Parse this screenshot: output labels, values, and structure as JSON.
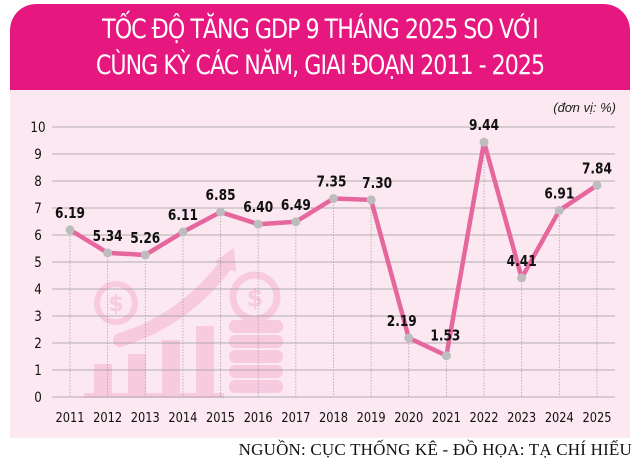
{
  "header": {
    "title_line1": "TỐC ĐỘ TĂNG GDP 9 THÁNG 2025 SO VỚI",
    "title_line2": "CÙNG KỲ CÁC NĂM, GIAI ĐOẠN 2011 - 2025"
  },
  "unit_label": "(đơn vị: %)",
  "source": "NGUỒN: CỤC THỐNG KÊ - ĐỒ HỌA: TẠ CHÍ HIẾU",
  "colors": {
    "header": "#e6177f",
    "background": "#fce8f1",
    "line": "#e5679d",
    "marker": "#bdbdbd",
    "grid": "#9a9a9a"
  },
  "chart_data": {
    "type": "line",
    "title": "TỐC ĐỘ TĂNG GDP 9 THÁNG 2025 SO VỚI CÙNG KỲ CÁC NĂM, GIAI ĐOẠN 2011 - 2025",
    "xlabel": "",
    "ylabel": "(đơn vị: %)",
    "categories": [
      "2011",
      "2012",
      "2013",
      "2014",
      "2015",
      "2016",
      "2017",
      "2018",
      "2019",
      "2020",
      "2021",
      "2022",
      "2023",
      "2024",
      "2025"
    ],
    "values": [
      6.19,
      5.34,
      5.26,
      6.11,
      6.85,
      6.4,
      6.49,
      7.35,
      7.3,
      2.19,
      1.53,
      9.44,
      4.41,
      6.91,
      7.84
    ],
    "value_labels": [
      "6.19",
      "5.34",
      "5.26",
      "6.11",
      "6.85",
      "6.40",
      "6.49",
      "7.35",
      "7.30",
      "2.19",
      "1.53",
      "9.44",
      "4.41",
      "6.91",
      "7.84"
    ],
    "y_ticks": [
      "0",
      "1",
      "2",
      "3",
      "4",
      "5",
      "6",
      "7",
      "8",
      "9",
      "10"
    ],
    "ylim": [
      0,
      10
    ],
    "grid": true,
    "legend": "none",
    "source": "NGUỒN: CỤC THỐNG KÊ - ĐỒ HỌA: TẠ CHÍ HIẾU"
  }
}
